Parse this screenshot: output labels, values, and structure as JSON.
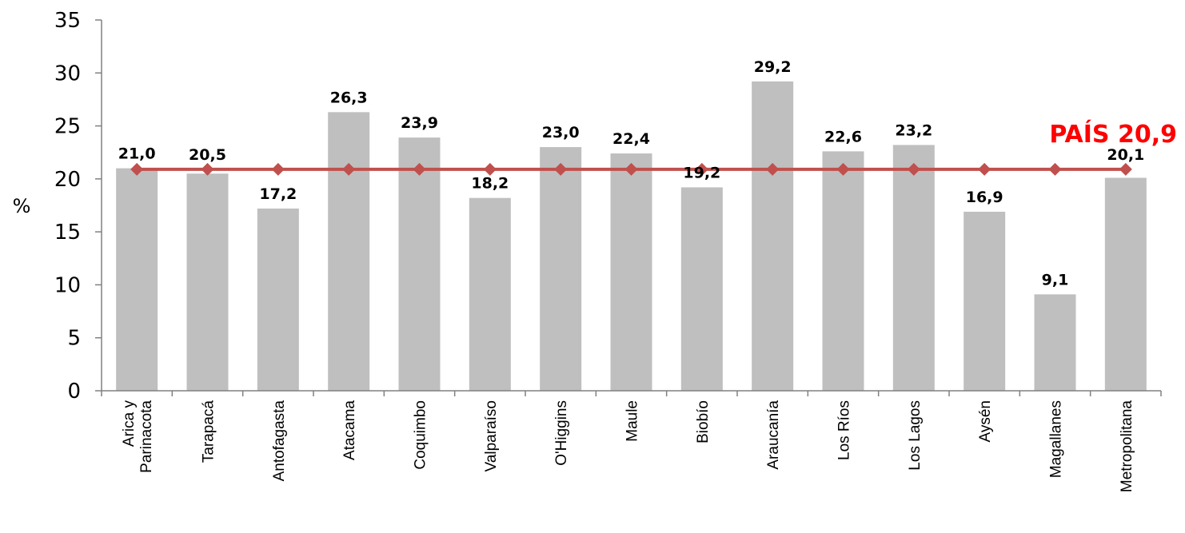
{
  "chart_data": {
    "type": "bar",
    "title": "",
    "xlabel": "",
    "ylabel": "%",
    "ylim": [
      0,
      35
    ],
    "yticks": [
      0,
      5,
      10,
      15,
      20,
      25,
      30,
      35
    ],
    "grid": false,
    "categories": [
      [
        "Arica y",
        "Parinacota"
      ],
      [
        "Tarapacá"
      ],
      [
        "Antofagasta"
      ],
      [
        "Atacama"
      ],
      [
        "Coquimbo"
      ],
      [
        "Valparaíso"
      ],
      [
        "O'Higgins"
      ],
      [
        "Maule"
      ],
      [
        "Biobío"
      ],
      [
        "Araucanía"
      ],
      [
        "Los Ríos"
      ],
      [
        "Los Lagos"
      ],
      [
        "Aysén"
      ],
      [
        "Magallanes"
      ],
      [
        "Metropolitana"
      ]
    ],
    "values": [
      21.0,
      20.5,
      17.2,
      26.3,
      23.9,
      18.2,
      23.0,
      22.4,
      19.2,
      29.2,
      22.6,
      23.2,
      16.9,
      9.1,
      20.1
    ],
    "value_labels": [
      "21,0",
      "20,5",
      "17,2",
      "26,3",
      "23,9",
      "18,2",
      "23,0",
      "22,4",
      "19,2",
      "29,2",
      "22,6",
      "23,2",
      "16,9",
      "9,1",
      "20,1"
    ],
    "reference_line": {
      "value": 20.9,
      "label": "PAÍS 20,9",
      "marker": "diamond"
    },
    "colors": {
      "bar": "#bfbfbf",
      "line": "#c0504d",
      "reference_label": "#ff0000"
    }
  }
}
